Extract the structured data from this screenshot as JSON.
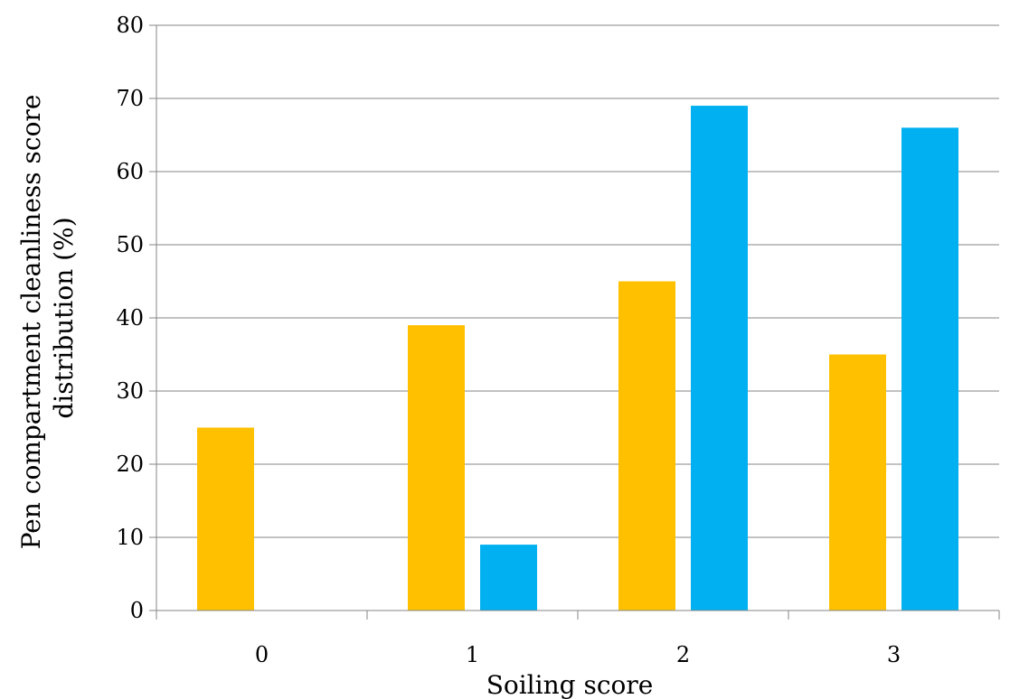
{
  "chart_data": {
    "type": "bar",
    "categories": [
      "0",
      "1",
      "2",
      "3"
    ],
    "series": [
      {
        "values": [
          25,
          39,
          45,
          35
        ],
        "color": "#FFC000"
      },
      {
        "values": [
          0,
          9,
          69,
          66
        ],
        "color": "#00B0F0"
      }
    ],
    "xlabel": "Soiling score",
    "ylabel_lines": [
      "Pen compartment cleanliness score",
      "distribution (%)"
    ],
    "ylim": [
      0,
      80
    ],
    "yticks": [
      "0",
      "10",
      "20",
      "30",
      "40",
      "50",
      "60",
      "70",
      "80"
    ],
    "grid": true,
    "gridline_color": "#868686",
    "axis_color": "#868686"
  }
}
